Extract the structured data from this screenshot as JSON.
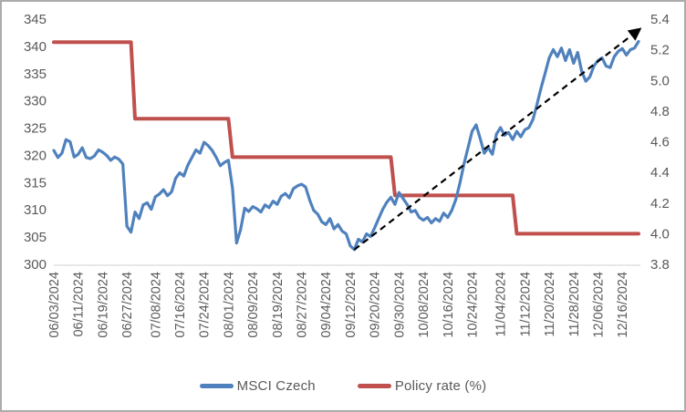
{
  "chart_data": {
    "type": "line",
    "title": "",
    "grid": false,
    "legend_position": "bottom",
    "dates": [
      "06/03/2024",
      "06/04/2024",
      "06/05/2024",
      "06/06/2024",
      "06/07/2024",
      "06/10/2024",
      "06/11/2024",
      "06/12/2024",
      "06/13/2024",
      "06/14/2024",
      "06/17/2024",
      "06/18/2024",
      "06/19/2024",
      "06/20/2024",
      "06/21/2024",
      "06/24/2024",
      "06/25/2024",
      "06/26/2024",
      "06/27/2024",
      "06/28/2024",
      "07/01/2024",
      "07/02/2024",
      "07/03/2024",
      "07/04/2024",
      "07/05/2024",
      "07/08/2024",
      "07/09/2024",
      "07/10/2024",
      "07/11/2024",
      "07/12/2024",
      "07/15/2024",
      "07/16/2024",
      "07/17/2024",
      "07/18/2024",
      "07/19/2024",
      "07/22/2024",
      "07/23/2024",
      "07/24/2024",
      "07/25/2024",
      "07/26/2024",
      "07/29/2024",
      "07/30/2024",
      "07/31/2024",
      "08/01/2024",
      "08/02/2024",
      "08/05/2024",
      "08/06/2024",
      "08/07/2024",
      "08/08/2024",
      "08/09/2024",
      "08/12/2024",
      "08/13/2024",
      "08/14/2024",
      "08/15/2024",
      "08/16/2024",
      "08/19/2024",
      "08/20/2024",
      "08/21/2024",
      "08/22/2024",
      "08/23/2024",
      "08/26/2024",
      "08/27/2024",
      "08/28/2024",
      "08/29/2024",
      "08/30/2024",
      "09/02/2024",
      "09/03/2024",
      "09/04/2024",
      "09/05/2024",
      "09/06/2024",
      "09/09/2024",
      "09/10/2024",
      "09/11/2024",
      "09/12/2024",
      "09/13/2024",
      "09/16/2024",
      "09/17/2024",
      "09/18/2024",
      "09/19/2024",
      "09/20/2024",
      "09/23/2024",
      "09/24/2024",
      "09/25/2024",
      "09/26/2024",
      "09/27/2024",
      "09/30/2024",
      "10/01/2024",
      "10/02/2024",
      "10/03/2024",
      "10/04/2024",
      "10/07/2024",
      "10/08/2024",
      "10/09/2024",
      "10/10/2024",
      "10/11/2024",
      "10/14/2024",
      "10/15/2024",
      "10/16/2024",
      "10/17/2024",
      "10/18/2024",
      "10/21/2024",
      "10/22/2024",
      "10/23/2024",
      "10/24/2024",
      "10/25/2024",
      "10/28/2024",
      "10/29/2024",
      "10/30/2024",
      "10/31/2024",
      "11/01/2024",
      "11/04/2024",
      "11/05/2024",
      "11/06/2024",
      "11/07/2024",
      "11/08/2024",
      "11/11/2024",
      "11/12/2024",
      "11/13/2024",
      "11/14/2024",
      "11/15/2024",
      "11/18/2024",
      "11/19/2024",
      "11/20/2024",
      "11/21/2024",
      "11/22/2024",
      "11/25/2024",
      "11/26/2024",
      "11/27/2024",
      "11/28/2024",
      "11/29/2024",
      "12/02/2024",
      "12/03/2024",
      "12/04/2024",
      "12/05/2024",
      "12/06/2024",
      "12/09/2024",
      "12/10/2024",
      "12/11/2024",
      "12/12/2024",
      "12/13/2024",
      "12/16/2024",
      "12/17/2024",
      "12/18/2024",
      "12/19/2024",
      "12/20/2024"
    ],
    "x_tick_labels": [
      "06/03/2024",
      "06/11/2024",
      "06/19/2024",
      "06/27/2024",
      "07/08/2024",
      "07/16/2024",
      "07/24/2024",
      "08/01/2024",
      "08/09/2024",
      "08/19/2024",
      "08/27/2024",
      "09/04/2024",
      "09/12/2024",
      "09/20/2024",
      "09/30/2024",
      "10/08/2024",
      "10/16/2024",
      "10/24/2024",
      "11/04/2024",
      "11/12/2024",
      "11/20/2024",
      "11/28/2024",
      "12/06/2024",
      "12/16/2024"
    ],
    "x_tick_indices": [
      0,
      6,
      12,
      18,
      25,
      31,
      37,
      43,
      49,
      55,
      61,
      67,
      73,
      79,
      85,
      91,
      97,
      103,
      110,
      116,
      122,
      128,
      134,
      140
    ],
    "series": [
      {
        "name": "MSCI Czech",
        "axis": "left",
        "color": "#4f81bd",
        "values": [
          320.9,
          319.6,
          320.4,
          322.9,
          322.5,
          319.7,
          320.2,
          321.4,
          319.6,
          319.4,
          319.9,
          321.0,
          320.6,
          320.0,
          319.1,
          319.7,
          319.3,
          318.4,
          307.0,
          305.9,
          309.6,
          308.4,
          310.9,
          311.3,
          310.1,
          312.4,
          312.9,
          313.7,
          312.6,
          313.3,
          315.8,
          316.8,
          316.2,
          318.2,
          319.6,
          321.0,
          320.4,
          322.4,
          321.8,
          320.9,
          319.6,
          318.1,
          318.7,
          319.1,
          314.0,
          303.9,
          306.4,
          310.3,
          309.7,
          310.6,
          310.2,
          309.6,
          310.9,
          310.4,
          311.6,
          311.0,
          312.5,
          313.0,
          312.2,
          313.9,
          314.4,
          314.7,
          314.2,
          311.8,
          309.9,
          309.2,
          307.8,
          307.3,
          308.4,
          306.5,
          307.3,
          306.1,
          305.6,
          303.4,
          302.7,
          304.6,
          304.1,
          305.6,
          305.1,
          306.7,
          308.4,
          310.1,
          311.4,
          312.3,
          311.0,
          313.2,
          312.1,
          311.0,
          309.6,
          309.9,
          308.6,
          308.1,
          308.6,
          307.6,
          308.4,
          307.9,
          309.4,
          308.6,
          309.9,
          311.9,
          314.9,
          318.4,
          321.4,
          324.4,
          325.6,
          323.1,
          320.4,
          321.4,
          320.2,
          323.9,
          325.1,
          323.7,
          324.2,
          322.9,
          324.4,
          323.4,
          324.7,
          325.1,
          326.6,
          329.4,
          332.4,
          335.1,
          337.9,
          339.4,
          338.1,
          339.7,
          337.4,
          339.4,
          336.9,
          338.9,
          335.4,
          333.6,
          334.4,
          336.4,
          337.4,
          337.9,
          336.4,
          336.1,
          338.1,
          339.1,
          339.6,
          338.4,
          339.4,
          339.7,
          340.9
        ]
      },
      {
        "name": "Policy rate (%)",
        "axis": "right",
        "color": "#c0504d",
        "step_segments": [
          {
            "from_date": "06/03/2024",
            "to_date": "06/28/2024",
            "start_index": 0,
            "end_index": 19,
            "rate": 5.25
          },
          {
            "from_date": "07/01/2024",
            "to_date": "08/01/2024",
            "start_index": 20,
            "end_index": 43,
            "rate": 4.75
          },
          {
            "from_date": "08/02/2024",
            "to_date": "09/26/2024",
            "start_index": 44,
            "end_index": 83,
            "rate": 4.5
          },
          {
            "from_date": "09/27/2024",
            "to_date": "11/07/2024",
            "start_index": 84,
            "end_index": 113,
            "rate": 4.25
          },
          {
            "from_date": "11/08/2024",
            "to_date": "12/20/2024",
            "start_index": 114,
            "end_index": 144,
            "rate": 4.0
          }
        ]
      }
    ],
    "trendline": {
      "style": "dashed-arrow",
      "color": "#000000",
      "from": {
        "index": 74,
        "value": 302.7
      },
      "to": {
        "index": 144,
        "value": 343.0
      }
    },
    "left_axis": {
      "min": 300,
      "max": 345,
      "step": 5,
      "ticks": [
        "345",
        "340",
        "335",
        "330",
        "325",
        "320",
        "315",
        "310",
        "305",
        "300"
      ]
    },
    "right_axis": {
      "min": 3.8,
      "max": 5.4,
      "step": 0.2,
      "ticks": [
        "5.4",
        "5.2",
        "5.0",
        "4.8",
        "4.6",
        "4.4",
        "4.2",
        "4.0",
        "3.8"
      ]
    },
    "axis_text_color": "#595959",
    "axis_line_color": "#d9d9d9"
  },
  "legend": {
    "msci_label": "MSCI Czech",
    "policy_label": "Policy rate (%)"
  },
  "colors": {
    "msci_line": "#4f81bd",
    "policy_line": "#c0504d",
    "trend_arrow": "#000000",
    "frame_border": "#ababab",
    "background": "#ffffff"
  }
}
